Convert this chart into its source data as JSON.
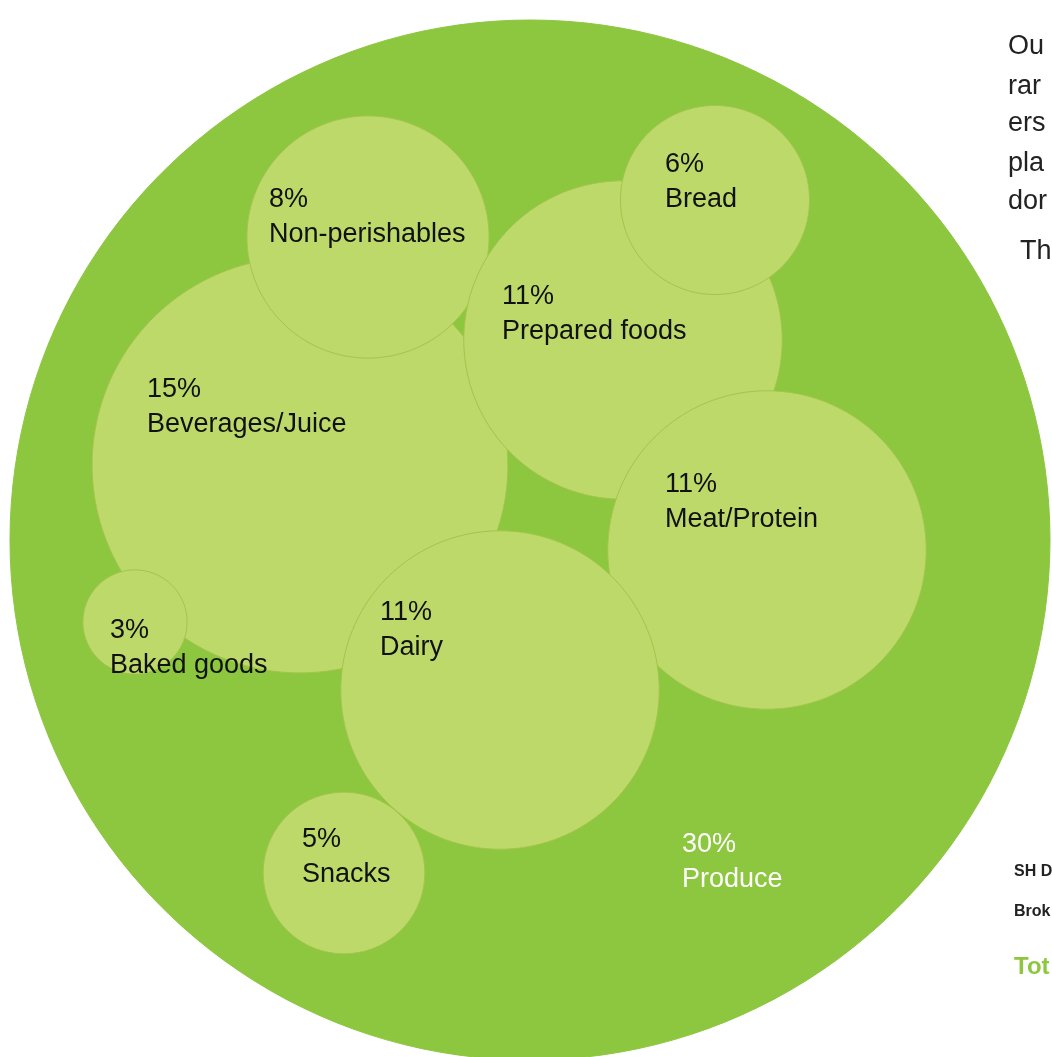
{
  "chart_data": {
    "type": "other",
    "categories": [
      "Produce",
      "Beverages/Juice",
      "Non-perishables",
      "Prepared foods",
      "Bread",
      "Meat/Protein",
      "Dairy",
      "Baked goods",
      "Snacks"
    ],
    "values": [
      30,
      15,
      8,
      11,
      6,
      11,
      11,
      3,
      5
    ],
    "value_labels": [
      "30%",
      "15%",
      "8%",
      "11%",
      "6%",
      "11%",
      "11%",
      "3%",
      "5%"
    ],
    "colors": [
      "#8dc63f",
      "#bcd96a",
      "#bcd96a",
      "#bcd96a",
      "#bcd96a",
      "#bcd96a",
      "#bcd96a",
      "#bcd96a",
      "#bcd96a"
    ],
    "annotations": [
      "Ou",
      "rar",
      "ers",
      "pla",
      "dor",
      "Th",
      "SH D",
      "Brok",
      "Tot"
    ]
  }
}
